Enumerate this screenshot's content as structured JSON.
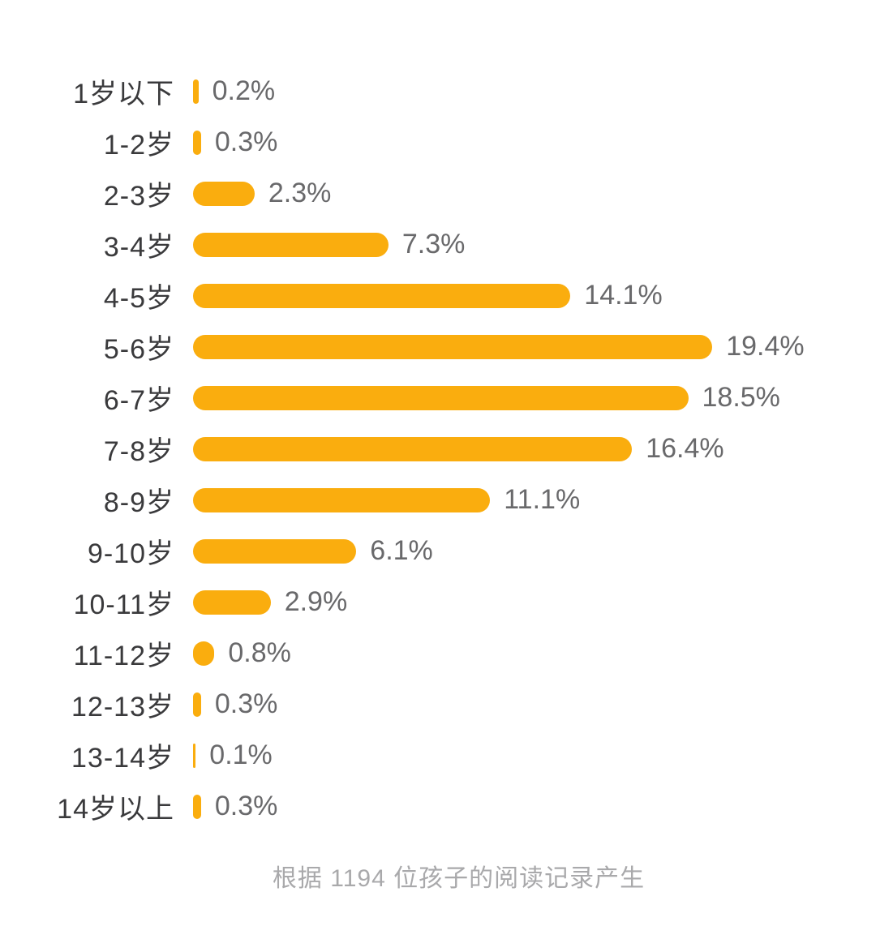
{
  "chart_data": {
    "type": "bar",
    "orientation": "horizontal",
    "bar_color": "#FAAD0E",
    "categories": [
      "1岁以下",
      "1-2岁",
      "2-3岁",
      "3-4岁",
      "4-5岁",
      "5-6岁",
      "6-7岁",
      "7-8岁",
      "8-9岁",
      "9-10岁",
      "10-11岁",
      "11-12岁",
      "12-13岁",
      "13-14岁",
      "14岁以上"
    ],
    "values": [
      0.2,
      0.3,
      2.3,
      7.3,
      14.1,
      19.4,
      18.5,
      16.4,
      11.1,
      6.1,
      2.9,
      0.8,
      0.3,
      0.1,
      0.3
    ],
    "value_labels": [
      "0.2%",
      "0.3%",
      "2.3%",
      "7.3%",
      "14.1%",
      "19.4%",
      "18.5%",
      "16.4%",
      "11.1%",
      "6.1%",
      "2.9%",
      "0.8%",
      "0.3%",
      "0.1%",
      "0.3%"
    ],
    "rows": [
      {
        "label": "1岁以下",
        "value": 0.2,
        "value_label": "0.2%"
      },
      {
        "label": "1-2岁",
        "value": 0.3,
        "value_label": "0.3%"
      },
      {
        "label": "2-3岁",
        "value": 2.3,
        "value_label": "2.3%"
      },
      {
        "label": "3-4岁",
        "value": 7.3,
        "value_label": "7.3%"
      },
      {
        "label": "4-5岁",
        "value": 14.1,
        "value_label": "14.1%"
      },
      {
        "label": "5-6岁",
        "value": 19.4,
        "value_label": "19.4%"
      },
      {
        "label": "6-7岁",
        "value": 18.5,
        "value_label": "18.5%"
      },
      {
        "label": "7-8岁",
        "value": 16.4,
        "value_label": "16.4%"
      },
      {
        "label": "8-9岁",
        "value": 11.1,
        "value_label": "11.1%"
      },
      {
        "label": "9-10岁",
        "value": 6.1,
        "value_label": "6.1%"
      },
      {
        "label": "10-11岁",
        "value": 2.9,
        "value_label": "2.9%"
      },
      {
        "label": "11-12岁",
        "value": 0.8,
        "value_label": "0.8%"
      },
      {
        "label": "12-13岁",
        "value": 0.3,
        "value_label": "0.3%"
      },
      {
        "label": "13-14岁",
        "value": 0.1,
        "value_label": "0.1%"
      },
      {
        "label": "14岁以上",
        "value": 0.3,
        "value_label": "0.3%"
      }
    ],
    "title": "",
    "xlabel": "",
    "ylabel": "",
    "xlim": [
      0,
      19.4
    ],
    "grid": false,
    "legend": "none",
    "note": "根据 1194 位孩子的阅读记录产生"
  }
}
